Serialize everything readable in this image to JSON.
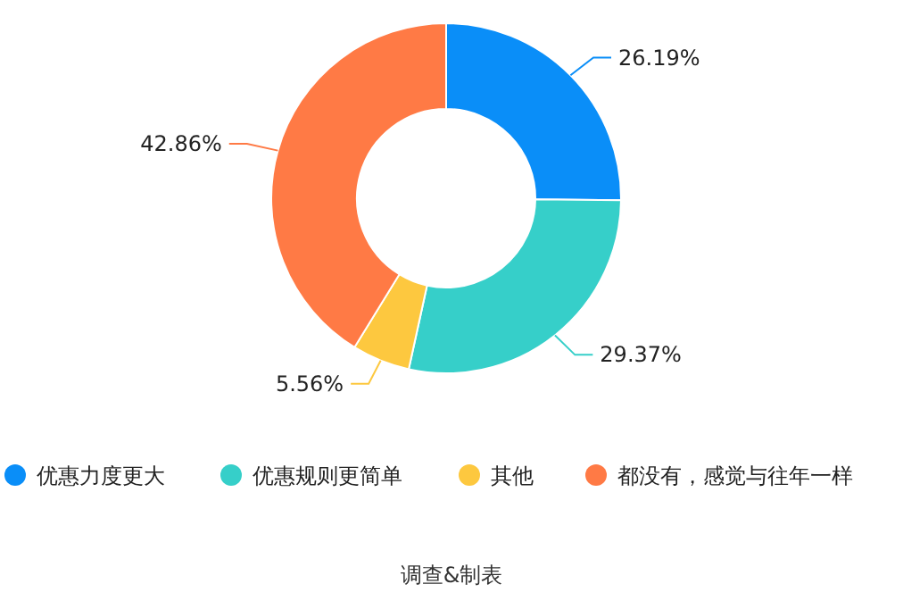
{
  "chart_data": {
    "type": "donut",
    "categories": [
      "优惠力度更大",
      "优惠规则更简单",
      "其他",
      "都没有，感觉与往年一样"
    ],
    "values": [
      26.19,
      29.37,
      5.56,
      42.86
    ],
    "value_labels": [
      "26.19%",
      "29.37%",
      "5.56%",
      "42.86%"
    ],
    "colors": [
      "#0a8ef8",
      "#36cfc9",
      "#fdc83f",
      "#ff7a45"
    ],
    "legend": "bottom",
    "annotations": [
      "调查&制表"
    ]
  }
}
